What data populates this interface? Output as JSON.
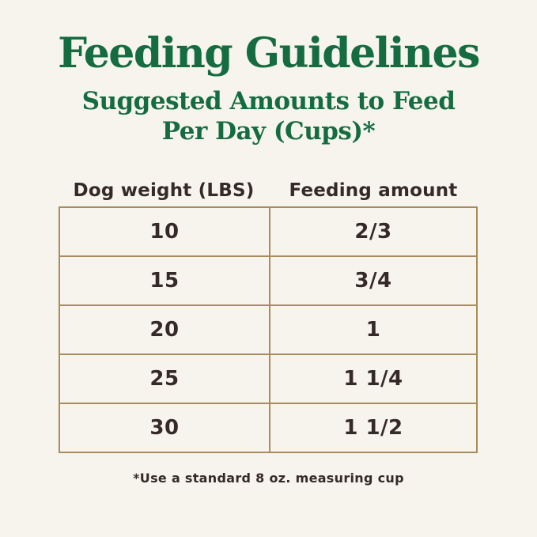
{
  "header": {
    "title": "Feeding Guidelines",
    "subtitle_line1": "Suggested Amounts to Feed",
    "subtitle_line2": "Per Day (Cups)*"
  },
  "footer": {
    "note": "*Use a standard 8 oz. measuring cup"
  },
  "colors": {
    "background": "#f6f4ec",
    "heading_green": "#156c41",
    "table_border_tan": "#a98b5e",
    "text_dark": "#362a29"
  },
  "chart_data": {
    "type": "table",
    "title": "Feeding Guidelines",
    "subtitle": "Suggested Amounts to Feed Per Day (Cups)*",
    "columns": [
      "Dog weight (LBS)",
      "Feeding amount"
    ],
    "rows": [
      [
        "10",
        "2/3"
      ],
      [
        "15",
        "3/4"
      ],
      [
        "20",
        "1"
      ],
      [
        "25",
        "1 1/4"
      ],
      [
        "30",
        "1 1/2"
      ]
    ],
    "footnote": "*Use a standard 8 oz. measuring cup",
    "layout": "two-column centered table, tan grid borders, no header row inside grid"
  }
}
